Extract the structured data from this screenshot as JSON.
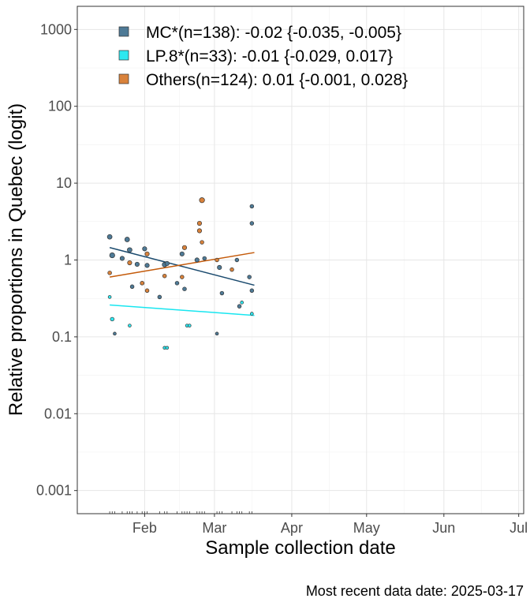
{
  "chart_data": {
    "type": "scatter",
    "ylabel": "Relative proportions in Quebec (logit)",
    "xlabel": "Sample collection date",
    "caption": "Most recent data date: 2025-03-17",
    "y_scale": "log",
    "ylim": [
      0.0005,
      2000
    ],
    "xlim": [
      "2025-01-05",
      "2025-07-03"
    ],
    "x_ticks": [
      {
        "date": "2025-02-01",
        "label": "Feb"
      },
      {
        "date": "2025-03-01",
        "label": "Mar"
      },
      {
        "date": "2025-04-01",
        "label": "Apr"
      },
      {
        "date": "2025-05-01",
        "label": "May"
      },
      {
        "date": "2025-06-01",
        "label": "Jun"
      },
      {
        "date": "2025-07-01",
        "label": "Jul"
      }
    ],
    "y_ticks": [
      {
        "value": 0.001,
        "label": "0.001"
      },
      {
        "value": 0.01,
        "label": "0.01"
      },
      {
        "value": 0.1,
        "label": "0.1"
      },
      {
        "value": 1,
        "label": "1"
      },
      {
        "value": 10,
        "label": "10"
      },
      {
        "value": 100,
        "label": "100"
      },
      {
        "value": 1000,
        "label": "1000"
      }
    ],
    "grid": true,
    "legend_position": "top-left",
    "series": [
      {
        "name": "MC*(n=138): -0.02 {-0.035, -0.005}",
        "color": "#4e7a96",
        "line_color": "#1a4a6e",
        "trend": [
          {
            "x": "2025-01-18",
            "y": 1.45
          },
          {
            "x": "2025-03-17",
            "y": 0.47
          }
        ],
        "points": [
          {
            "x": "2025-01-18",
            "y": 2.0,
            "n": 4
          },
          {
            "x": "2025-01-19",
            "y": 1.15,
            "n": 5
          },
          {
            "x": "2025-01-23",
            "y": 1.05,
            "n": 3
          },
          {
            "x": "2025-01-25",
            "y": 1.85,
            "n": 4
          },
          {
            "x": "2025-01-26",
            "y": 1.35,
            "n": 4
          },
          {
            "x": "2025-01-27",
            "y": 0.45,
            "n": 2
          },
          {
            "x": "2025-01-29",
            "y": 0.88,
            "n": 3
          },
          {
            "x": "2025-01-31",
            "y": 0.5,
            "n": 2
          },
          {
            "x": "2025-02-01",
            "y": 1.4,
            "n": 3
          },
          {
            "x": "2025-02-02",
            "y": 0.85,
            "n": 3
          },
          {
            "x": "2025-02-07",
            "y": 0.33,
            "n": 2
          },
          {
            "x": "2025-02-09",
            "y": 0.87,
            "n": 4
          },
          {
            "x": "2025-02-10",
            "y": 0.9,
            "n": 3
          },
          {
            "x": "2025-02-14",
            "y": 0.5,
            "n": 2
          },
          {
            "x": "2025-02-16",
            "y": 1.2,
            "n": 3
          },
          {
            "x": "2025-02-17",
            "y": 0.42,
            "n": 2
          },
          {
            "x": "2025-02-22",
            "y": 1.0,
            "n": 3
          },
          {
            "x": "2025-02-25",
            "y": 1.05,
            "n": 2
          },
          {
            "x": "2025-03-03",
            "y": 0.8,
            "n": 3
          },
          {
            "x": "2025-03-04",
            "y": 0.37,
            "n": 2
          },
          {
            "x": "2025-03-10",
            "y": 1.0,
            "n": 2
          },
          {
            "x": "2025-03-11",
            "y": 0.25,
            "n": 2
          },
          {
            "x": "2025-03-15",
            "y": 0.6,
            "n": 2
          },
          {
            "x": "2025-03-16",
            "y": 5.0,
            "n": 2
          },
          {
            "x": "2025-03-16",
            "y": 3.0,
            "n": 2
          },
          {
            "x": "2025-03-16",
            "y": 0.4,
            "n": 2
          },
          {
            "x": "2025-01-20",
            "y": 0.11,
            "n": 1
          },
          {
            "x": "2025-03-02",
            "y": 0.11,
            "n": 1
          }
        ]
      },
      {
        "name": "LP.8*(n=33): -0.01 {-0.029, 0.017}",
        "color": "#2ee8f0",
        "line_color": "#18e6f0",
        "trend": [
          {
            "x": "2025-01-18",
            "y": 0.26
          },
          {
            "x": "2025-03-17",
            "y": 0.19
          }
        ],
        "points": [
          {
            "x": "2025-01-18",
            "y": 0.33,
            "n": 1
          },
          {
            "x": "2025-01-19",
            "y": 0.17,
            "n": 2
          },
          {
            "x": "2025-01-26",
            "y": 0.14,
            "n": 1
          },
          {
            "x": "2025-02-09",
            "y": 0.072,
            "n": 1
          },
          {
            "x": "2025-02-10",
            "y": 0.072,
            "n": 1
          },
          {
            "x": "2025-02-18",
            "y": 0.14,
            "n": 1
          },
          {
            "x": "2025-02-19",
            "y": 0.14,
            "n": 1
          },
          {
            "x": "2025-03-12",
            "y": 0.28,
            "n": 1
          },
          {
            "x": "2025-03-16",
            "y": 0.2,
            "n": 1
          }
        ]
      },
      {
        "name": "Others(n=124): 0.01 {-0.001, 0.028}",
        "color": "#d9823b",
        "line_color": "#c45a0a",
        "trend": [
          {
            "x": "2025-01-18",
            "y": 0.6
          },
          {
            "x": "2025-03-17",
            "y": 1.25
          }
        ],
        "points": [
          {
            "x": "2025-01-18",
            "y": 0.68,
            "n": 2
          },
          {
            "x": "2025-01-26",
            "y": 0.92,
            "n": 3
          },
          {
            "x": "2025-01-31",
            "y": 0.5,
            "n": 2
          },
          {
            "x": "2025-02-02",
            "y": 1.2,
            "n": 3
          },
          {
            "x": "2025-02-02",
            "y": 0.4,
            "n": 2
          },
          {
            "x": "2025-02-09",
            "y": 0.62,
            "n": 2
          },
          {
            "x": "2025-02-16",
            "y": 0.6,
            "n": 2
          },
          {
            "x": "2025-02-17",
            "y": 1.45,
            "n": 3
          },
          {
            "x": "2025-02-23",
            "y": 2.4,
            "n": 3
          },
          {
            "x": "2025-02-23",
            "y": 3.0,
            "n": 3
          },
          {
            "x": "2025-02-24",
            "y": 6.0,
            "n": 5
          },
          {
            "x": "2025-02-24",
            "y": 1.7,
            "n": 2
          },
          {
            "x": "2025-03-02",
            "y": 1.0,
            "n": 2
          },
          {
            "x": "2025-03-08",
            "y": 0.75,
            "n": 2
          }
        ]
      }
    ]
  }
}
